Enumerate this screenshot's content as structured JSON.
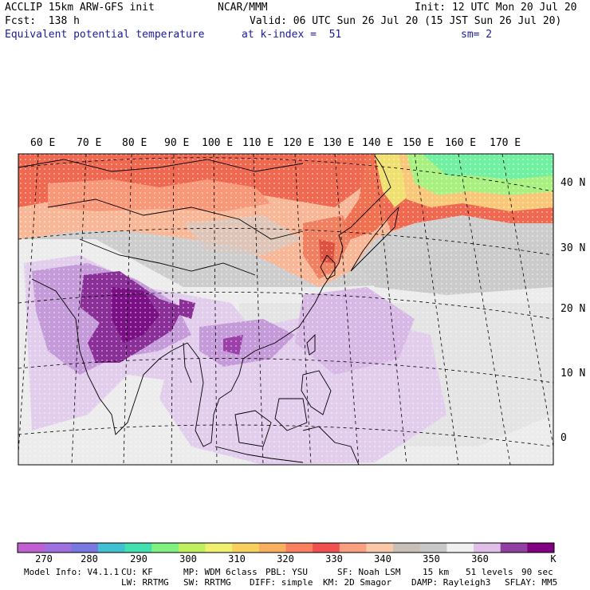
{
  "header": {
    "model": "ACCLIP 15km ARW-GFS init",
    "org": "NCAR/MMM",
    "init": "Init: 12 UTC Mon 20 Jul 20",
    "fcst": "Fcst:  138 h",
    "valid": "Valid: 06 UTC Sun 26 Jul 20 (15 JST Sun 26 Jul 20)",
    "field": "Equivalent potential temperature",
    "level": "at k-index =  51",
    "smooth": "sm= 2"
  },
  "map": {
    "lon_labels": [
      "60 E",
      "70 E",
      "80 E",
      "90 E",
      "100 E",
      "110 E",
      "120 E",
      "130 E",
      "140 E",
      "150 E",
      "160 E",
      "170 E"
    ],
    "lat_labels": [
      "40 N",
      "30 N",
      "20 N",
      "10 N",
      "0"
    ]
  },
  "colorbar": {
    "labels": [
      "270",
      "280",
      "290",
      "300",
      "310",
      "320",
      "330",
      "340",
      "350",
      "360"
    ],
    "unit": "K",
    "colors": [
      "#c060d0",
      "#a070e0",
      "#7878e0",
      "#40c0d0",
      "#40e0b0",
      "#80f080",
      "#c0f060",
      "#f0f070",
      "#f8d060",
      "#f8b060",
      "#f88060",
      "#f05050",
      "#f8a080",
      "#f8c8a8",
      "#c8c0b8",
      "#c8c8c8",
      "#f0f0f0",
      "#e0c0e8",
      "#9040a0",
      "#800080"
    ]
  },
  "footer": {
    "line1": [
      "Model Info: V4.1.1",
      "CU: KF",
      "MP: WDM 6class",
      "PBL: YSU",
      "SF: Noah LSM",
      "15 km",
      "51 levels",
      "90 sec"
    ],
    "line2": [
      "LW: RRTMG",
      "SW: RRTMG",
      "DIFF: simple",
      "KM: 2D Smagor",
      "DAMP: Rayleigh3",
      "SFLAY: MM5"
    ]
  },
  "colors": {
    "cold_purple": "#800080",
    "mid_purple": "#c8a0d8",
    "light_purple": "#e0c8ec",
    "grey": "#c8c8c8",
    "peach": "#f8b898",
    "red": "#f06050",
    "yellow": "#f0e070",
    "green": "#70f080"
  }
}
